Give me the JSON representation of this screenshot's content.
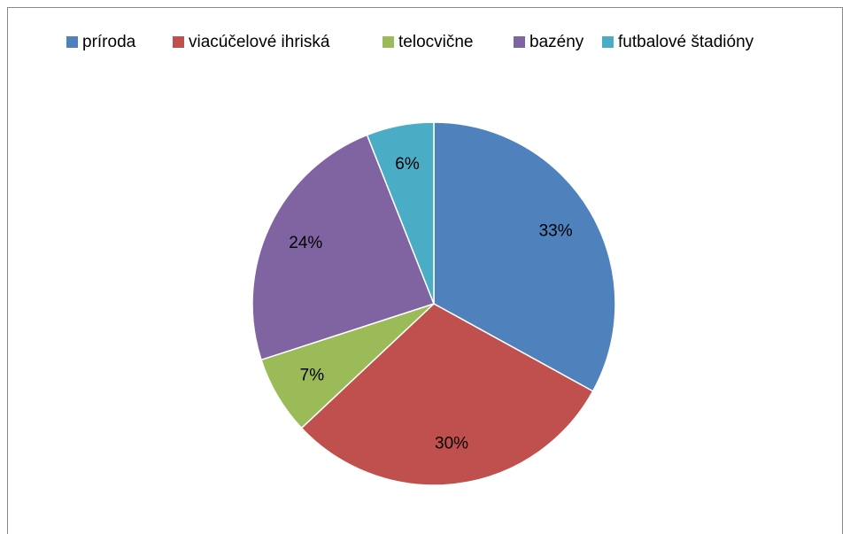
{
  "chart_data": {
    "type": "pie",
    "categories": [
      "príroda",
      "viacúčelové ihriská",
      "telocvične",
      "bazény",
      "futbalové štadióny"
    ],
    "values": [
      33,
      30,
      7,
      24,
      6
    ],
    "value_labels": [
      "33%",
      "30%",
      "7%",
      "24%",
      "6%"
    ],
    "colors": [
      "#4f81bd",
      "#c0504d",
      "#9bbb59",
      "#8064a2",
      "#4bacc6"
    ],
    "legend": "top"
  }
}
